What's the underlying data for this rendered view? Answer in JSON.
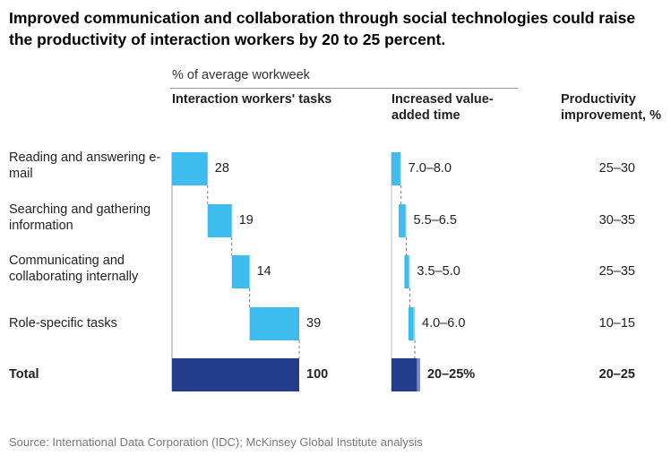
{
  "title": "Improved communication and collaboration through social technologies could raise the productivity of interaction workers by 20 to 25 percent.",
  "unit_label": "% of average workweek",
  "source": "Source: International Data Corporation (IDC); McKinsey Global Institute analysis",
  "chart_data": {
    "type": "bar",
    "subtype": "waterfall",
    "colors": {
      "task": "#3dbced",
      "total": "#233d8c",
      "range_extra": "#8fd8f5",
      "total_range_extra": "#7b88c2",
      "connector": "#5a7fa0"
    },
    "columns": {
      "tasks": "Interaction workers' tasks",
      "value_added": "Increased value-added time",
      "productivity": "Productivity improvement, %"
    },
    "categories": [
      "Reading and answering e-mail",
      "Searching and gathering information",
      "Communicating and collaborating internally",
      "Role-specific tasks",
      "Total"
    ],
    "tasks": [
      28,
      19,
      14,
      39,
      100
    ],
    "task_labels": [
      "28",
      "19",
      "14",
      "39",
      "100"
    ],
    "value_added": [
      [
        7.0,
        8.0
      ],
      [
        5.5,
        6.5
      ],
      [
        3.5,
        5.0
      ],
      [
        4.0,
        6.0
      ],
      [
        20,
        25
      ]
    ],
    "value_added_labels": [
      "7.0–8.0",
      "5.5–6.5",
      "3.5–5.0",
      "4.0–6.0",
      "20–25%"
    ],
    "productivity_labels": [
      "25–30",
      "30–35",
      "25–35",
      "10–15",
      "20–25"
    ]
  }
}
